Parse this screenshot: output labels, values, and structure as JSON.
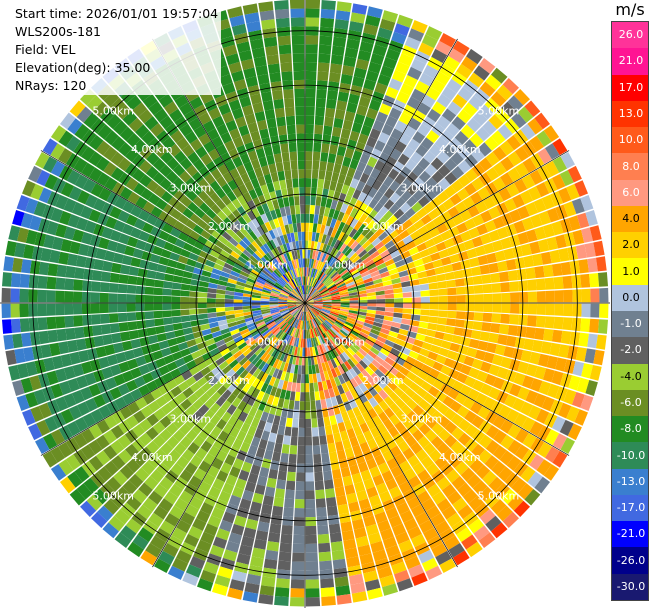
{
  "header": {
    "start_time": "Start time: 2026/01/01 19:57:04",
    "site": "WLS200s-181",
    "field": "Field: VEL",
    "elevation": "Elevation(deg): 35.00",
    "nrays": "NRays: 120"
  },
  "colorbar": {
    "unit": "m/s",
    "ticks": [
      "26.0",
      "21.0",
      "17.0",
      "13.0",
      "10.0",
      "8.0",
      "6.0",
      "4.0",
      "2.0",
      "1.0",
      "0.0",
      "-1.0",
      "-2.0",
      "-4.0",
      "-6.0",
      "-8.0",
      "-10.0",
      "-13.0",
      "-17.0",
      "-21.0",
      "-26.0",
      "-30.0"
    ],
    "colors": [
      "#ff3399",
      "#ff1493",
      "#ff0000",
      "#ff3300",
      "#ff5a1a",
      "#ff7f50",
      "#ff9980",
      "#ffa500",
      "#ffd000",
      "#ffff00",
      "#b0c4de",
      "#708090",
      "#606060",
      "#9acd32",
      "#6b8e23",
      "#228b22",
      "#2e8b57",
      "#3a7fcf",
      "#4169e1",
      "#0000ff",
      "#00008b",
      "#191970"
    ]
  },
  "chart_data": {
    "type": "heatmap",
    "projection": "polar-ppi",
    "field": "VEL",
    "units": "m/s",
    "elevation_deg": 35.0,
    "n_rays": 120,
    "range_rings_km": [
      1.0,
      2.0,
      3.0,
      4.0,
      5.0
    ],
    "ring_labels": [
      "1.00km",
      "2.00km",
      "3.00km",
      "4.00km",
      "5.00km"
    ],
    "max_range_km": 5.6,
    "gates": 34,
    "color_scale": [
      -30,
      -26,
      -21,
      -17,
      -13,
      -10,
      -8,
      -6,
      -4,
      -2,
      -1,
      0,
      1,
      2,
      4,
      6,
      8,
      10,
      13,
      17,
      21,
      26
    ],
    "azimuth_sectors": [
      {
        "from_deg": 0,
        "to_deg": 20,
        "near": -1.5,
        "mid": -6,
        "far": -7
      },
      {
        "from_deg": 20,
        "to_deg": 50,
        "near": 0.5,
        "mid": -1,
        "far": 2
      },
      {
        "from_deg": 50,
        "to_deg": 120,
        "near": 2,
        "mid": 3.5,
        "far": 4
      },
      {
        "from_deg": 120,
        "to_deg": 170,
        "near": 3,
        "mid": 3.5,
        "far": 5
      },
      {
        "from_deg": 170,
        "to_deg": 200,
        "near": 0.5,
        "mid": -1,
        "far": -1.5
      },
      {
        "from_deg": 200,
        "to_deg": 240,
        "near": -1.5,
        "mid": -3,
        "far": -5
      },
      {
        "from_deg": 240,
        "to_deg": 300,
        "near": -2,
        "mid": -8,
        "far": -9
      },
      {
        "from_deg": 300,
        "to_deg": 360,
        "near": -3,
        "mid": -6,
        "far": -7
      }
    ]
  }
}
